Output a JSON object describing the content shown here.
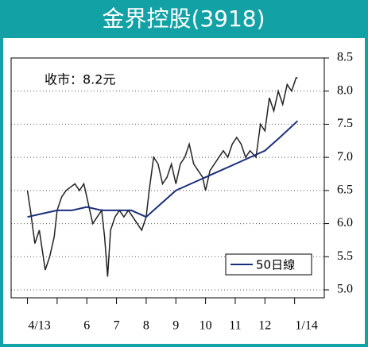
{
  "chart_data": {
    "type": "line",
    "title": "金界控股(3918)",
    "annotation": "收市：8.2元",
    "xlim": [
      3.45,
      14.0
    ],
    "xticks": [
      {
        "value": 4,
        "label": "4/13"
      },
      {
        "value": 5,
        "label": null
      },
      6,
      7,
      8,
      9,
      10,
      11,
      12,
      {
        "value": 13,
        "label": "1/14"
      }
    ],
    "ylim": [
      4.88,
      8.5
    ],
    "yticks": [
      {
        "value": 5,
        "label": "5.0"
      },
      5.5,
      {
        "value": 6,
        "label": "6.0"
      },
      6.5,
      {
        "value": 7,
        "label": "7.0"
      },
      7.5,
      {
        "value": 8,
        "label": "8.0"
      },
      8.5
    ],
    "grid": true,
    "legend": "lower right",
    "series": [
      {
        "color": "#222222",
        "x": [
          4.0,
          4.1,
          4.25,
          4.4,
          4.5,
          4.6,
          4.75,
          4.9,
          5.0,
          5.15,
          5.3,
          5.45,
          5.6,
          5.75,
          5.9,
          6.05,
          6.2,
          6.35,
          6.5,
          6.6,
          6.7,
          6.8,
          6.95,
          7.1,
          7.25,
          7.4,
          7.55,
          7.7,
          7.85,
          8.0,
          8.1,
          8.25,
          8.4,
          8.55,
          8.7,
          8.85,
          9.0,
          9.15,
          9.3,
          9.45,
          9.6,
          9.75,
          9.9,
          10.0,
          10.15,
          10.3,
          10.45,
          10.6,
          10.75,
          10.9,
          11.05,
          11.2,
          11.35,
          11.5,
          11.7,
          11.85,
          12.0,
          12.15,
          12.3,
          12.45,
          12.6,
          12.75,
          12.9,
          13.05,
          13.1
        ],
        "values": [
          6.5,
          6.2,
          5.7,
          5.9,
          5.6,
          5.3,
          5.5,
          5.8,
          6.2,
          6.4,
          6.5,
          6.55,
          6.6,
          6.5,
          6.6,
          6.3,
          6.0,
          6.1,
          6.2,
          5.8,
          5.2,
          5.9,
          6.1,
          6.2,
          6.1,
          6.2,
          6.1,
          6.0,
          5.9,
          6.1,
          6.5,
          7.0,
          6.9,
          6.6,
          6.7,
          6.9,
          6.6,
          6.9,
          7.0,
          7.2,
          6.9,
          6.8,
          6.7,
          6.5,
          6.8,
          6.9,
          7.0,
          7.1,
          7.0,
          7.2,
          7.3,
          7.2,
          7.0,
          7.1,
          7.0,
          7.5,
          7.4,
          7.9,
          7.7,
          8.0,
          7.8,
          8.1,
          8.0,
          8.2,
          8.2
        ]
      },
      {
        "name": "50日線",
        "color": "#1a2f7a",
        "x": [
          4.0,
          4.5,
          5.0,
          5.5,
          6.0,
          6.5,
          7.0,
          7.5,
          8.0,
          8.5,
          9.0,
          9.5,
          10.0,
          10.5,
          11.0,
          11.5,
          12.0,
          12.5,
          13.1
        ],
        "values": [
          6.1,
          6.15,
          6.2,
          6.2,
          6.25,
          6.2,
          6.2,
          6.2,
          6.1,
          6.3,
          6.5,
          6.6,
          6.7,
          6.8,
          6.9,
          7.0,
          7.1,
          7.3,
          7.55
        ]
      }
    ]
  }
}
